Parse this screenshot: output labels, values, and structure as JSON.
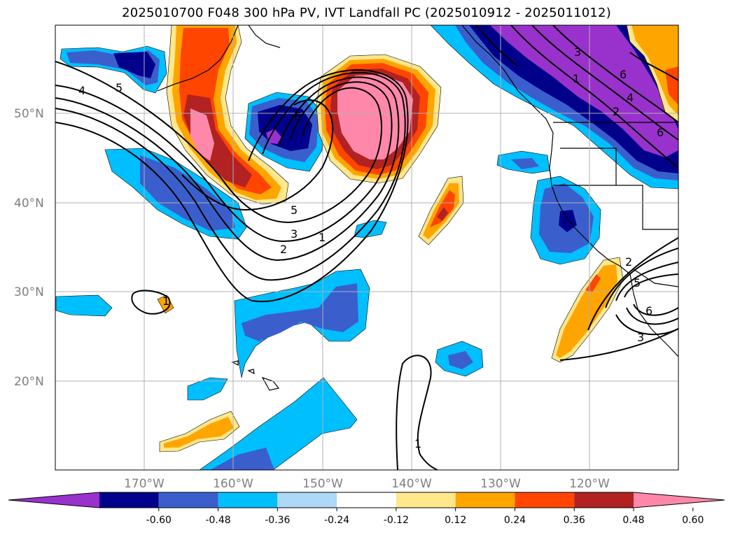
{
  "title": "2025010700 F048 300 hPa PV, IVT Landfall PC (2025010912 - 2025011012)",
  "map": {
    "lat_labels": [
      "50°N",
      "40°N",
      "30°N",
      "20°N"
    ],
    "lon_labels": [
      "170°W",
      "160°W",
      "150°W",
      "140°W",
      "130°W",
      "120°W"
    ],
    "gridlines": true,
    "contour_labels": [
      "4",
      "5",
      "6",
      "5",
      "3",
      "2",
      "1",
      "3",
      "1",
      "6",
      "4",
      "2",
      "6",
      "1",
      "1",
      "2",
      "5",
      "6",
      "3"
    ]
  },
  "colorbar": {
    "levels": [
      "-0.60",
      "-0.48",
      "-0.36",
      "-0.24",
      "-0.12",
      "0.12",
      "0.24",
      "0.36",
      "0.48",
      "0.60"
    ],
    "colors": [
      "#9932cc",
      "#00008b",
      "#3a5fcd",
      "#00bfff",
      "#add8f6",
      "#ffffff",
      "#ffe78a",
      "#ffa500",
      "#ff4500",
      "#b22222",
      "#ff88aa"
    ],
    "extend": "both"
  }
}
